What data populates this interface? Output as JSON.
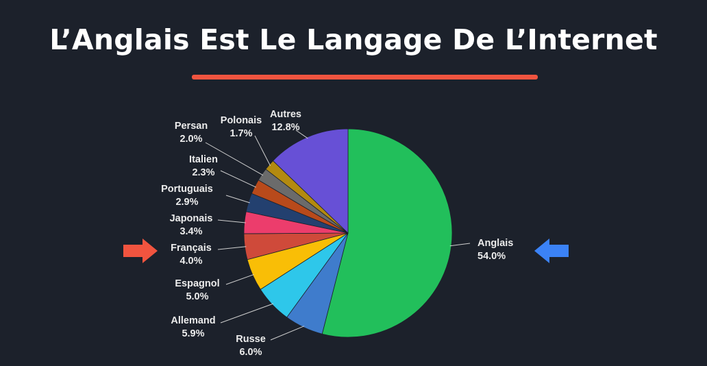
{
  "title": "L’Anglais Est Le Langage De L’Internet",
  "colors": {
    "background": "#1c212b",
    "accent_red": "#f1543f",
    "accent_blue": "#3b82f6"
  },
  "markers": {
    "left_arrow_icon": "arrow-right-icon",
    "right_arrow_icon": "arrow-left-icon"
  },
  "chart_data": {
    "type": "pie",
    "title": "",
    "unit": "%",
    "start": "top",
    "direction": "clockwise",
    "slices": [
      {
        "name": "Anglais",
        "value": 54.0,
        "label": "54.0%",
        "color": "#22bf5b"
      },
      {
        "name": "Russe",
        "value": 6.0,
        "label": "6.0%",
        "color": "#3f7ccc"
      },
      {
        "name": "Allemand",
        "value": 5.9,
        "label": "5.9%",
        "color": "#2ec7ea"
      },
      {
        "name": "Espagnol",
        "value": 5.0,
        "label": "5.0%",
        "color": "#f9be06"
      },
      {
        "name": "Français",
        "value": 4.0,
        "label": "4.0%",
        "color": "#cf4a3a"
      },
      {
        "name": "Japonais",
        "value": 3.4,
        "label": "3.4%",
        "color": "#ec3d6c"
      },
      {
        "name": "Portuguais",
        "value": 2.9,
        "label": "2.9%",
        "color": "#23406f"
      },
      {
        "name": "Italien",
        "value": 2.3,
        "label": "2.3%",
        "color": "#b84a1b"
      },
      {
        "name": "Persan",
        "value": 2.0,
        "label": "2.0%",
        "color": "#6b6b6b"
      },
      {
        "name": "Polonais",
        "value": 1.7,
        "label": "1.7%",
        "color": "#b38a10"
      },
      {
        "name": "Autres",
        "value": 12.8,
        "label": "12.8%",
        "color": "#6750d6"
      }
    ]
  }
}
